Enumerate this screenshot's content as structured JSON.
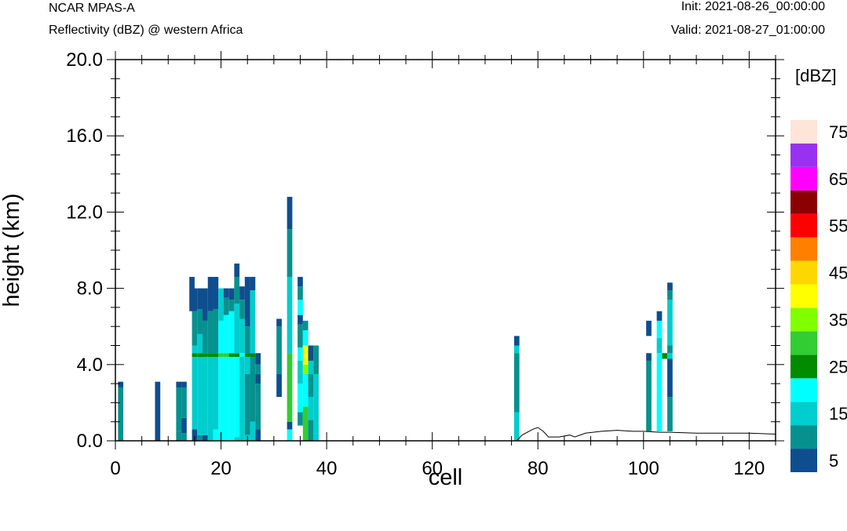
{
  "header": {
    "model": "NCAR MPAS-A",
    "field": "Reflectivity (dBZ) @ western Africa",
    "init": "Init: 2021-08-26_00:00:00",
    "valid": "Valid: 2021-08-27_01:00:00"
  },
  "chart_data": {
    "type": "heatmap",
    "xlabel": "cell",
    "ylabel": "height (km)",
    "xlim": [
      0,
      125
    ],
    "ylim": [
      0,
      20
    ],
    "x_ticks": [
      0,
      20,
      40,
      60,
      80,
      100,
      120
    ],
    "y_ticks": [
      0,
      4,
      8,
      12,
      16,
      20
    ],
    "y_tick_labels": [
      "0.0",
      "4.0",
      "8.0",
      "12.0",
      "16.0",
      "20.0"
    ],
    "colorbar": {
      "unit": "[dBZ]",
      "levels": [
        5,
        10,
        15,
        20,
        25,
        30,
        35,
        40,
        45,
        50,
        55,
        60,
        65,
        70,
        75
      ],
      "colors": [
        "#0e4e8e",
        "#06918f",
        "#00cdcd",
        "#00ffff",
        "#008b00",
        "#32cd32",
        "#80ff00",
        "#ffff00",
        "#ffd700",
        "#ff8000",
        "#ff0000",
        "#8b0000",
        "#ff00ff",
        "#9932f0",
        "#ffe4d8"
      ],
      "labels": [
        "5",
        "15",
        "25",
        "35",
        "45",
        "55",
        "65",
        "75"
      ]
    },
    "columns": [
      {
        "x": 1,
        "segments": [
          [
            0,
            2.8,
            10
          ],
          [
            2.8,
            3.1,
            5
          ]
        ]
      },
      {
        "x": 8,
        "segments": [
          [
            0,
            3.1,
            5
          ]
        ]
      },
      {
        "x": 12,
        "segments": [
          [
            0,
            0.5,
            10
          ],
          [
            0.5,
            2.8,
            10
          ],
          [
            2.8,
            3.1,
            5
          ]
        ]
      },
      {
        "x": 13,
        "segments": [
          [
            0,
            0.4,
            10
          ],
          [
            0.4,
            1.2,
            5
          ],
          [
            1.2,
            2.8,
            10
          ],
          [
            2.8,
            3.1,
            5
          ]
        ]
      },
      {
        "x": 14.5,
        "segments": [
          [
            6.8,
            8.6,
            5
          ]
        ]
      },
      {
        "x": 15,
        "segments": [
          [
            0,
            0.6,
            5
          ],
          [
            0.6,
            4.4,
            15
          ],
          [
            4.4,
            4.6,
            25
          ],
          [
            4.6,
            5.0,
            15
          ],
          [
            5.0,
            6.8,
            10
          ],
          [
            6.8,
            8.0,
            5
          ]
        ]
      },
      {
        "x": 16,
        "segments": [
          [
            0,
            0.3,
            10
          ],
          [
            0.3,
            4.4,
            15
          ],
          [
            4.4,
            4.6,
            25
          ],
          [
            4.6,
            5.6,
            15
          ],
          [
            5.6,
            6.9,
            10
          ],
          [
            6.9,
            8.0,
            5
          ]
        ]
      },
      {
        "x": 17,
        "segments": [
          [
            0,
            0.3,
            5
          ],
          [
            0.3,
            4.4,
            15
          ],
          [
            4.4,
            4.6,
            25
          ],
          [
            4.6,
            6.3,
            10
          ],
          [
            6.3,
            8.0,
            5
          ]
        ]
      },
      {
        "x": 18,
        "segments": [
          [
            0,
            4.4,
            15
          ],
          [
            4.4,
            4.6,
            25
          ],
          [
            4.6,
            6.8,
            10
          ],
          [
            6.8,
            8.6,
            5
          ]
        ]
      },
      {
        "x": 19,
        "segments": [
          [
            0,
            0.6,
            20
          ],
          [
            0.6,
            4.4,
            15
          ],
          [
            4.4,
            4.6,
            25
          ],
          [
            4.6,
            6.9,
            10
          ],
          [
            6.9,
            8.6,
            5
          ]
        ]
      },
      {
        "x": 20,
        "segments": [
          [
            0,
            4.4,
            20
          ],
          [
            4.4,
            4.6,
            30
          ],
          [
            4.6,
            6.3,
            20
          ],
          [
            6.3,
            8.0,
            15
          ]
        ]
      },
      {
        "x": 21,
        "segments": [
          [
            0,
            4.4,
            20
          ],
          [
            4.4,
            4.6,
            30
          ],
          [
            4.6,
            6.6,
            20
          ],
          [
            6.6,
            7.5,
            10
          ],
          [
            7.5,
            8.0,
            5
          ]
        ]
      },
      {
        "x": 22,
        "segments": [
          [
            0,
            4.4,
            20
          ],
          [
            4.4,
            4.6,
            25
          ],
          [
            4.6,
            6.8,
            20
          ],
          [
            6.8,
            7.4,
            10
          ],
          [
            7.4,
            8.0,
            5
          ]
        ]
      },
      {
        "x": 23,
        "segments": [
          [
            0,
            0.2,
            15
          ],
          [
            0.2,
            4.4,
            20
          ],
          [
            4.4,
            4.6,
            25
          ],
          [
            4.6,
            7.2,
            15
          ],
          [
            7.2,
            8.6,
            10
          ],
          [
            8.6,
            9.3,
            5
          ]
        ]
      },
      {
        "x": 24,
        "segments": [
          [
            0,
            4.4,
            15
          ],
          [
            4.4,
            4.6,
            20
          ],
          [
            4.6,
            6.4,
            15
          ],
          [
            6.4,
            7.4,
            10
          ],
          [
            7.4,
            8.1,
            5
          ]
        ]
      },
      {
        "x": 25,
        "segments": [
          [
            0,
            0.3,
            15
          ],
          [
            0.3,
            3.5,
            10
          ],
          [
            3.5,
            4.4,
            15
          ],
          [
            4.4,
            4.6,
            25
          ],
          [
            4.6,
            6.0,
            10
          ],
          [
            6.0,
            8.6,
            5
          ]
        ]
      },
      {
        "x": 26,
        "segments": [
          [
            0,
            1.0,
            15
          ],
          [
            1.0,
            4.4,
            10
          ],
          [
            4.4,
            4.6,
            25
          ],
          [
            4.6,
            7.9,
            15
          ],
          [
            7.9,
            8.6,
            5
          ]
        ]
      },
      {
        "x": 27,
        "segments": [
          [
            0,
            0.6,
            5
          ],
          [
            0.6,
            3.0,
            10
          ],
          [
            3.0,
            3.5,
            5
          ],
          [
            3.5,
            4.0,
            10
          ],
          [
            4.0,
            4.6,
            5
          ]
        ]
      },
      {
        "x": 31,
        "segments": [
          [
            2.3,
            3.5,
            5
          ],
          [
            3.5,
            6.0,
            10
          ],
          [
            6.0,
            6.4,
            5
          ]
        ]
      },
      {
        "x": 33,
        "segments": [
          [
            0,
            0.6,
            20
          ],
          [
            0.6,
            1.0,
            5
          ],
          [
            1.0,
            4.6,
            30
          ],
          [
            4.6,
            8.6,
            15
          ],
          [
            8.6,
            11.1,
            10
          ],
          [
            11.1,
            12.8,
            5
          ]
        ]
      },
      {
        "x": 35,
        "segments": [
          [
            0.8,
            1.5,
            10
          ],
          [
            1.5,
            3.0,
            20
          ],
          [
            3.0,
            4.2,
            15
          ],
          [
            4.2,
            4.9,
            20
          ],
          [
            4.9,
            6.1,
            10
          ],
          [
            6.1,
            6.6,
            5
          ],
          [
            6.6,
            7.4,
            20
          ],
          [
            7.4,
            8.1,
            10
          ],
          [
            8.1,
            8.6,
            5
          ]
        ]
      },
      {
        "x": 36,
        "segments": [
          [
            0,
            1.8,
            30
          ],
          [
            1.8,
            3.5,
            20
          ],
          [
            3.5,
            4.0,
            35
          ],
          [
            4.0,
            5.0,
            40
          ],
          [
            5.0,
            5.8,
            20
          ],
          [
            5.8,
            6.3,
            10
          ]
        ]
      },
      {
        "x": 37,
        "segments": [
          [
            0,
            1.1,
            10
          ],
          [
            1.1,
            2.3,
            15
          ],
          [
            2.3,
            3.5,
            10
          ],
          [
            3.5,
            4.2,
            15
          ],
          [
            4.2,
            5.0,
            5
          ]
        ]
      },
      {
        "x": 38,
        "segments": [
          [
            0,
            0.4,
            15
          ],
          [
            0.4,
            3.5,
            15
          ],
          [
            3.5,
            5.0,
            10
          ]
        ]
      },
      {
        "x": 76,
        "segments": [
          [
            0,
            1.5,
            15
          ],
          [
            1.5,
            4.6,
            10
          ],
          [
            4.6,
            5.0,
            15
          ],
          [
            5.0,
            5.5,
            5
          ]
        ]
      },
      {
        "x": 101,
        "segments": [
          [
            0.5,
            4.2,
            10
          ],
          [
            4.2,
            4.6,
            5
          ],
          [
            5.5,
            6.3,
            5
          ]
        ]
      },
      {
        "x": 103,
        "segments": [
          [
            0.5,
            4.6,
            20
          ],
          [
            4.6,
            5.4,
            15
          ],
          [
            5.4,
            6.3,
            20
          ],
          [
            6.3,
            6.8,
            5
          ]
        ]
      },
      {
        "x": 104,
        "segments": [
          [
            4.3,
            4.6,
            25
          ]
        ]
      },
      {
        "x": 105,
        "segments": [
          [
            0.5,
            2.3,
            10
          ],
          [
            2.3,
            4.3,
            5
          ],
          [
            4.3,
            4.6,
            15
          ],
          [
            4.6,
            5.0,
            10
          ],
          [
            5.0,
            7.4,
            15
          ],
          [
            7.4,
            7.9,
            10
          ],
          [
            7.9,
            8.3,
            5
          ]
        ]
      }
    ],
    "terrain": [
      [
        0,
        0
      ],
      [
        76,
        0
      ],
      [
        77,
        0.3
      ],
      [
        79,
        0.6
      ],
      [
        80,
        0.7
      ],
      [
        81,
        0.5
      ],
      [
        82,
        0.2
      ],
      [
        84,
        0.2
      ],
      [
        86,
        0.3
      ],
      [
        87,
        0.2
      ],
      [
        89,
        0.4
      ],
      [
        92,
        0.5
      ],
      [
        95,
        0.55
      ],
      [
        98,
        0.5
      ],
      [
        100,
        0.5
      ],
      [
        103,
        0.45
      ],
      [
        105,
        0.45
      ],
      [
        110,
        0.4
      ],
      [
        115,
        0.4
      ],
      [
        120,
        0.4
      ],
      [
        125,
        0.35
      ]
    ]
  }
}
